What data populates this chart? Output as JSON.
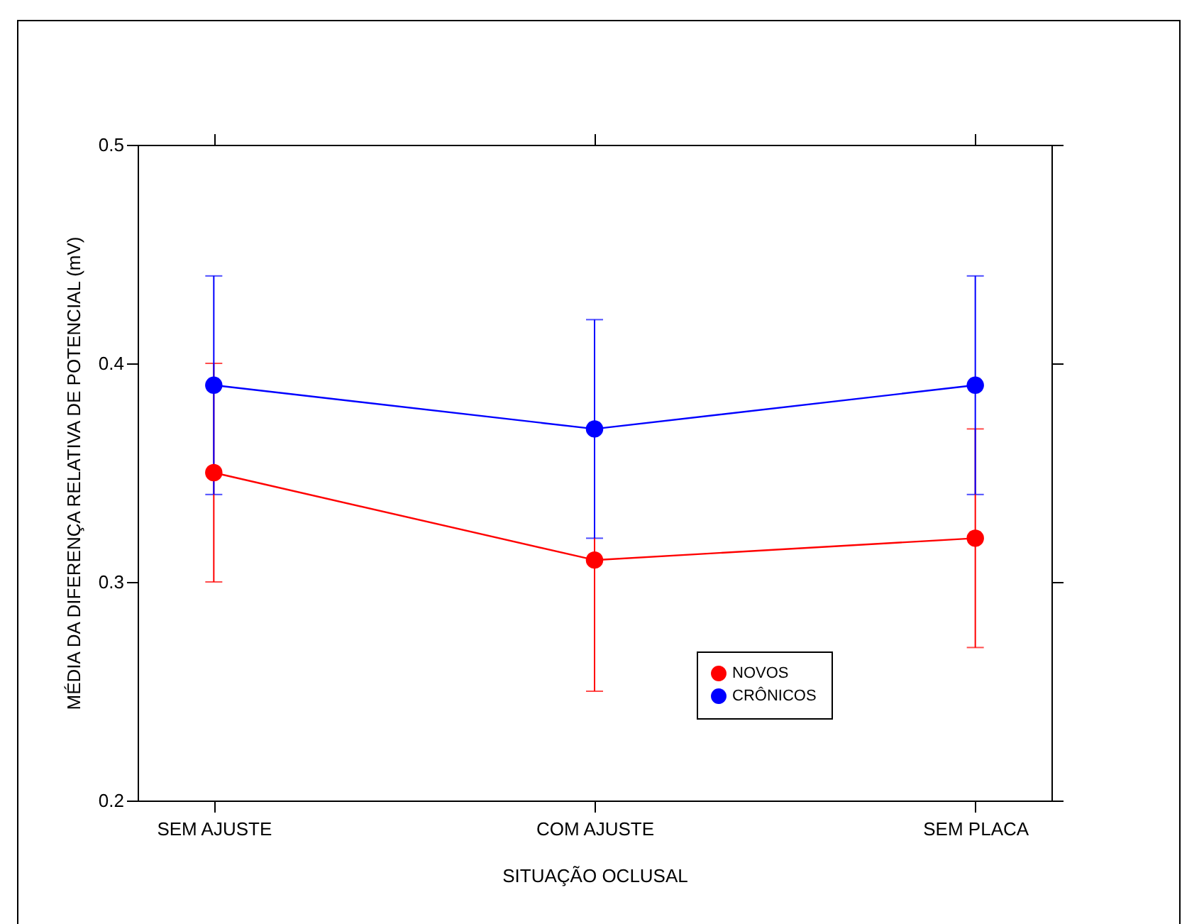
{
  "chart_data": {
    "type": "line",
    "xlabel": "SITUAÇÃO OCLUSAL",
    "ylabel": "MÉDIA DA DIFERENÇA RELATIVA  DE POTENCIAL (mV)",
    "categories": [
      "SEM AJUSTE",
      "COM AJUSTE",
      "SEM PLACA"
    ],
    "series": [
      {
        "name": "NOVOS",
        "color": "#ff0000",
        "values": [
          0.35,
          0.31,
          0.32
        ],
        "errors": [
          0.05,
          0.06,
          0.05
        ]
      },
      {
        "name": "CRÔNICOS",
        "color": "#0000ff",
        "values": [
          0.39,
          0.37,
          0.39
        ],
        "errors": [
          0.05,
          0.05,
          0.05
        ]
      }
    ],
    "ylim": [
      0.2,
      0.5
    ],
    "yticks": [
      0.2,
      0.3,
      0.4,
      0.5
    ],
    "grid": false,
    "legend": "bottom right",
    "marker": "circle",
    "line_style": "solid"
  }
}
